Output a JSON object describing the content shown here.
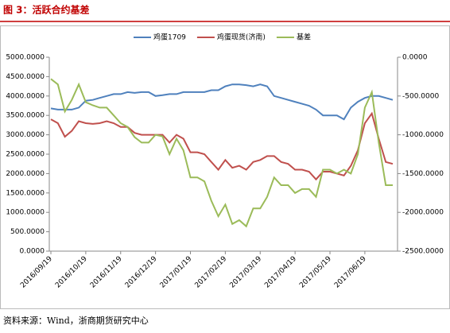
{
  "title": "图 3：活跃合约基差",
  "source": "资料来源：Wind，浙商期货研究中心",
  "chart_data": {
    "type": "line",
    "categories": [
      "2016/09/19",
      null,
      null,
      null,
      null,
      "2016/10/19",
      null,
      null,
      null,
      null,
      "2016/11/19",
      null,
      null,
      null,
      null,
      "2016/12/19",
      null,
      null,
      null,
      null,
      "2017/01/19",
      null,
      null,
      null,
      null,
      "2017/02/19",
      null,
      null,
      null,
      null,
      "2017/03/19",
      null,
      null,
      null,
      null,
      "2017/04/19",
      null,
      null,
      null,
      null,
      "2017/05/19",
      null,
      null,
      null,
      null,
      "2017/06/19",
      null,
      null,
      null,
      null
    ],
    "series": [
      {
        "name": "鸡蛋1709",
        "color": "#4f81bd",
        "values": [
          3680,
          3650,
          3650,
          3650,
          3700,
          3880,
          3900,
          3950,
          4000,
          4050,
          4050,
          4100,
          4080,
          4100,
          4100,
          4000,
          4020,
          4050,
          4050,
          4100,
          4100,
          4100,
          4100,
          4150,
          4150,
          4250,
          4300,
          4300,
          4280,
          4250,
          4300,
          4250,
          4000,
          3950,
          3900,
          3850,
          3800,
          3750,
          3650,
          3500,
          3500,
          3500,
          3400,
          3700,
          3850,
          3950,
          4000,
          4000,
          3950,
          3900
        ]
      },
      {
        "name": "鸡蛋现货(济南)",
        "color": "#c0504d",
        "values": [
          3400,
          3300,
          2950,
          3100,
          3350,
          3300,
          3280,
          3300,
          3350,
          3300,
          3200,
          3200,
          3050,
          3000,
          3000,
          3000,
          3000,
          2800,
          3000,
          2900,
          2550,
          2550,
          2500,
          2300,
          2100,
          2350,
          2150,
          2200,
          2100,
          2300,
          2350,
          2450,
          2450,
          2300,
          2250,
          2100,
          2100,
          2050,
          1850,
          2050,
          2050,
          2000,
          1950,
          2200,
          2600,
          3300,
          3550,
          2900,
          2300,
          2250
        ]
      },
      {
        "name": "基差",
        "color": "#9bbb59",
        "axis": "y2",
        "values": [
          -280,
          -350,
          -700,
          -550,
          -350,
          -580,
          -620,
          -650,
          -650,
          -750,
          -850,
          -900,
          -1030,
          -1100,
          -1100,
          -1000,
          -1020,
          -1250,
          -1050,
          -1200,
          -1550,
          -1550,
          -1600,
          -1850,
          -2050,
          -1900,
          -2150,
          -2100,
          -2180,
          -1950,
          -1950,
          -1800,
          -1550,
          -1650,
          -1650,
          -1750,
          -1700,
          -1700,
          -1800,
          -1450,
          -1450,
          -1500,
          -1450,
          -1500,
          -1250,
          -650,
          -450,
          -1100,
          -1650,
          -1650
        ]
      }
    ],
    "ylim": [
      0,
      5000
    ],
    "yticks": [
      {
        "value": 0,
        "label": "0.0000"
      },
      {
        "value": 500,
        "label": "500.0000"
      },
      {
        "value": 1000,
        "label": "1000.0000"
      },
      {
        "value": 1500,
        "label": "1500.0000"
      },
      {
        "value": 2000,
        "label": "2000.0000"
      },
      {
        "value": 2500,
        "label": "2500.0000"
      },
      {
        "value": 3000,
        "label": "3000.0000"
      },
      {
        "value": 3500,
        "label": "3500.0000"
      },
      {
        "value": 4000,
        "label": "4000.0000"
      },
      {
        "value": 4500,
        "label": "4500.0000"
      },
      {
        "value": 5000,
        "label": "5000.0000"
      }
    ],
    "y2lim": [
      -2500,
      0
    ],
    "y2ticks": [
      {
        "value": -2500,
        "label": "-2500.0000"
      },
      {
        "value": -2000,
        "label": "-2000.0000"
      },
      {
        "value": -1500,
        "label": "-1500.0000"
      },
      {
        "value": -1000,
        "label": "-1000.0000"
      },
      {
        "value": -500,
        "label": "-500.0000"
      },
      {
        "value": 0,
        "label": "0.0000"
      }
    ],
    "legend": "top"
  }
}
